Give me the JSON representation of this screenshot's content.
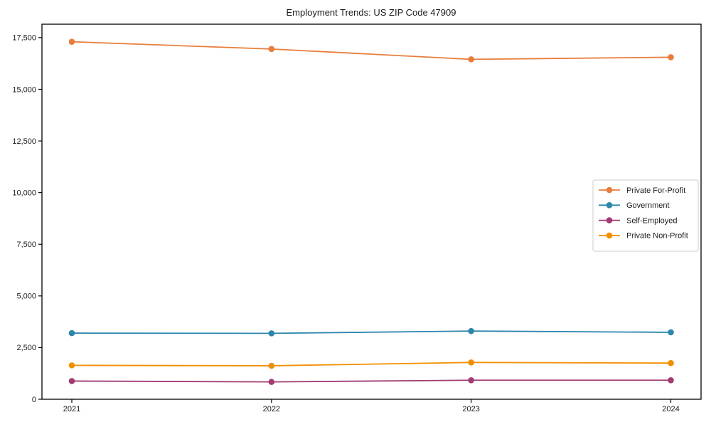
{
  "chart_data": {
    "type": "line",
    "title": "Employment Trends: US ZIP Code 47909",
    "xlabel": "",
    "ylabel": "",
    "x": [
      2021,
      2022,
      2023,
      2024
    ],
    "x_tick_labels": [
      "2021",
      "2022",
      "2023",
      "2024"
    ],
    "y_ticks": [
      0,
      2500,
      5000,
      7500,
      10000,
      12500,
      15000,
      17500
    ],
    "y_tick_labels": [
      "0",
      "2,500",
      "5,000",
      "7,500",
      "10,000",
      "12,500",
      "15,000",
      "17,500"
    ],
    "xlim": [
      2021,
      2024
    ],
    "ylim": [
      0,
      18150
    ],
    "grid": false,
    "legend_position": "center-right",
    "series": [
      {
        "name": "Private For-Profit",
        "color": "#E87D3C",
        "values": [
          17300,
          16950,
          16450,
          16550
        ]
      },
      {
        "name": "Government",
        "color": "#2E86AB",
        "values": [
          3200,
          3190,
          3300,
          3240
        ]
      },
      {
        "name": "Self-Employed",
        "color": "#A23B72",
        "values": [
          880,
          840,
          920,
          920
        ]
      },
      {
        "name": "Private Non-Profit",
        "color": "#F18F01",
        "values": [
          1640,
          1620,
          1780,
          1750
        ]
      }
    ],
    "colors": {
      "text": "#1a1a1a",
      "axis": "#000000",
      "legend_border": "#cccccc",
      "background": "#ffffff"
    }
  }
}
